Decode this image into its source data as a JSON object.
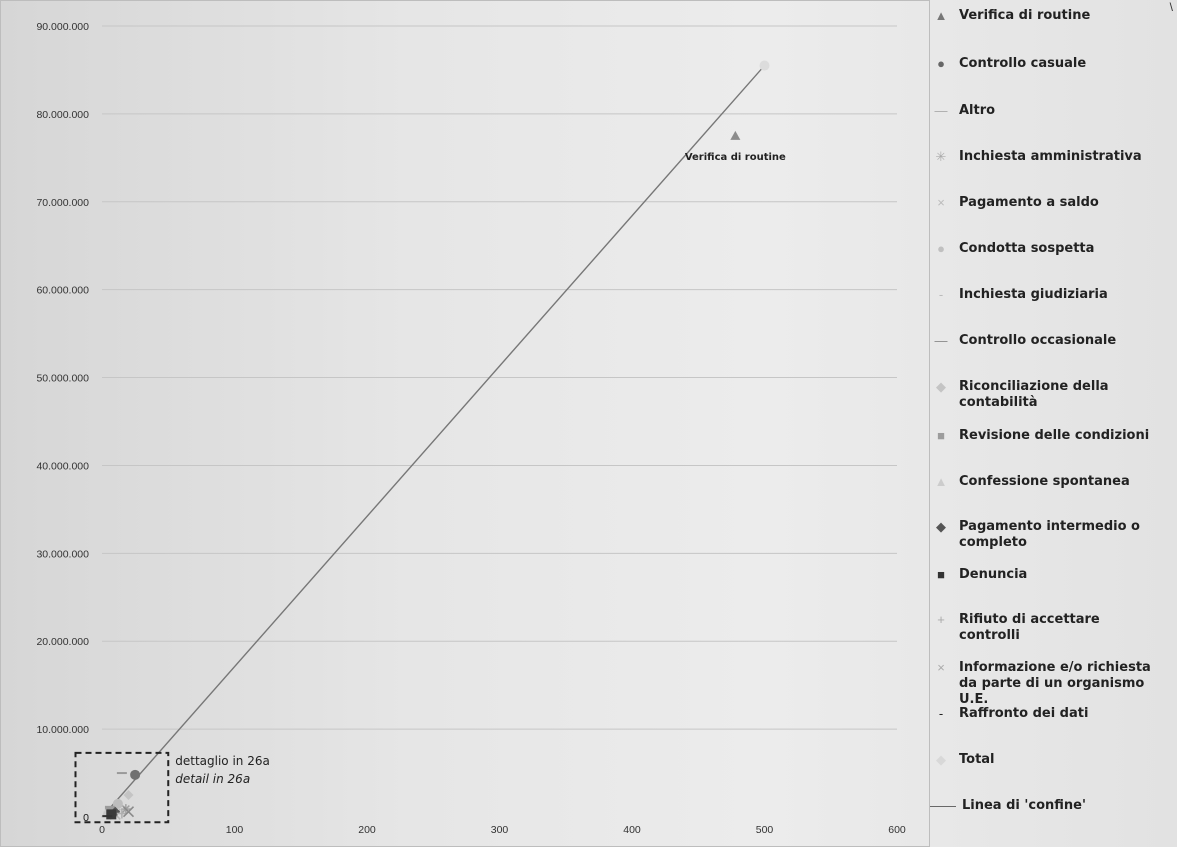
{
  "chart_data": {
    "type": "scatter",
    "title": "",
    "xlabel": "",
    "ylabel": "",
    "xlim": [
      0,
      600
    ],
    "ylim": [
      0,
      90000000
    ],
    "x_ticks": [
      "0",
      "100",
      "200",
      "300",
      "400",
      "500",
      "600"
    ],
    "y_ticks": [
      "0",
      "10.000.000",
      "20.000.000",
      "30.000.000",
      "40.000.000",
      "50.000.000",
      "60.000.000",
      "70.000.000",
      "80.000.000",
      "90.000.000"
    ],
    "grid": "horizontal",
    "legend_position": "right",
    "series": [
      {
        "name": "Verifica di routine",
        "marker": "triangle",
        "color": "#8c8c8c",
        "points": [
          {
            "x": 478,
            "y": 77500000
          }
        ]
      },
      {
        "name": "Controllo casuale",
        "marker": "circle",
        "color": "#707070",
        "points": [
          {
            "x": 25,
            "y": 4800000
          }
        ]
      },
      {
        "name": "Altro",
        "marker": "dash",
        "color": "#9a9a9a",
        "points": [
          {
            "x": 15,
            "y": 5000000
          }
        ]
      },
      {
        "name": "Inchiesta amministrativa",
        "marker": "star",
        "color": "#a0a0a0",
        "points": [
          {
            "x": 18,
            "y": 900000
          }
        ]
      },
      {
        "name": "Pagamento a saldo",
        "marker": "x",
        "color": "#b5b5b5",
        "points": [
          {
            "x": 10,
            "y": 300000
          }
        ]
      },
      {
        "name": "Condotta sospetta",
        "marker": "circle",
        "color": "#bdbdbd",
        "points": [
          {
            "x": 12,
            "y": 1500000
          }
        ]
      },
      {
        "name": "Inchiesta giudiziaria",
        "marker": "dash",
        "color": "#c2c2c2",
        "points": [
          {
            "x": 5,
            "y": 500000
          }
        ]
      },
      {
        "name": "Controllo occasionale",
        "marker": "dash",
        "color": "#8a8a8a",
        "points": [
          {
            "x": 8,
            "y": 200000
          }
        ]
      },
      {
        "name": "Riconciliazione della contabilità",
        "marker": "diamond",
        "color": "#c4c4c4",
        "points": [
          {
            "x": 20,
            "y": 2500000
          }
        ]
      },
      {
        "name": "Revisione delle condizioni",
        "marker": "square",
        "color": "#9c9c9c",
        "points": [
          {
            "x": 6,
            "y": 700000
          }
        ]
      },
      {
        "name": "Confessione spontanea",
        "marker": "triangle",
        "color": "#c9c9c9",
        "points": [
          {
            "x": 3,
            "y": 400000
          }
        ]
      },
      {
        "name": "Pagamento intermedio o completo",
        "marker": "diamond",
        "color": "#555555",
        "points": [
          {
            "x": 10,
            "y": 600000
          }
        ]
      },
      {
        "name": "Denuncia",
        "marker": "square",
        "color": "#3a3a3a",
        "points": [
          {
            "x": 7,
            "y": 300000
          }
        ]
      },
      {
        "name": "Rifiuto di accettare controlli",
        "marker": "plus",
        "color": "#b0b0b0",
        "points": [
          {
            "x": 15,
            "y": 400000
          }
        ]
      },
      {
        "name": "Informazione e/o richiesta da parte di un organismo U.E.",
        "marker": "x",
        "color": "#8a8a8a",
        "points": [
          {
            "x": 20,
            "y": 600000
          }
        ]
      },
      {
        "name": "Raffronto dei dati",
        "marker": "dash",
        "color": "#333333",
        "points": [
          {
            "x": 4,
            "y": 100000
          }
        ]
      },
      {
        "name": "Total",
        "marker": "circle",
        "color": "#dcdcdc",
        "points": [
          {
            "x": 500,
            "y": 85500000
          }
        ]
      }
    ],
    "line": {
      "name": "Linea di 'confine'",
      "color": "#777777",
      "points": [
        {
          "x": 0,
          "y": 0
        },
        {
          "x": 500,
          "y": 85500000
        }
      ]
    },
    "annotations": [
      {
        "text": "Verifica di routine",
        "x": 478,
        "y": 77500000,
        "style": "bold"
      },
      {
        "text": "dettaglio in 26a",
        "style": "normal"
      },
      {
        "text": "detail in 26a",
        "style": "italic"
      }
    ],
    "detail_box": {
      "x": [
        -20,
        50
      ],
      "y": [
        -600000,
        7300000
      ]
    }
  },
  "legend": {
    "items": [
      {
        "label": "Verifica di routine",
        "symbol": "▲",
        "color": "#777777"
      },
      {
        "label": "Controllo casuale",
        "symbol": "●",
        "color": "#666666"
      },
      {
        "label": "Altro",
        "symbol": "—",
        "color": "#aaaaaa"
      },
      {
        "label": "Inchiesta amministrativa",
        "symbol": "✳",
        "color": "#aaaaaa"
      },
      {
        "label": "Pagamento a saldo",
        "symbol": "×",
        "color": "#bbbbbb"
      },
      {
        "label": "Condotta sospetta",
        "symbol": "●",
        "color": "#c0c0c0"
      },
      {
        "label": "Inchiesta giudiziaria",
        "symbol": "-",
        "color": "#bbbbbb"
      },
      {
        "label": "Controllo occasionale",
        "symbol": "—",
        "color": "#888888"
      },
      {
        "label": "Riconciliazione della contabilità",
        "symbol": "◆",
        "color": "#c4c4c4"
      },
      {
        "label": "Revisione delle condizioni",
        "symbol": "■",
        "color": "#9c9c9c"
      },
      {
        "label": "Confessione spontanea",
        "symbol": "▲",
        "color": "#cccccc"
      },
      {
        "label": "Pagamento intermedio o completo",
        "symbol": "◆",
        "color": "#555555"
      },
      {
        "label": "Denuncia",
        "symbol": "■",
        "color": "#333333"
      },
      {
        "label": "Rifiuto di accettare controlli",
        "symbol": "+",
        "color": "#aaaaaa"
      },
      {
        "label": "Informazione e/o richiesta da parte di un organismo U.E.",
        "symbol": "×",
        "color": "#aaaaaa"
      },
      {
        "label": "Raffronto dei dati",
        "symbol": "-",
        "color": "#222222"
      },
      {
        "label": "Total",
        "symbol": "◆",
        "color": "#d8d8d8"
      },
      {
        "label": "Linea di 'confine'",
        "symbol": "——",
        "color": "#555555"
      }
    ]
  },
  "corner_mark": "\\"
}
